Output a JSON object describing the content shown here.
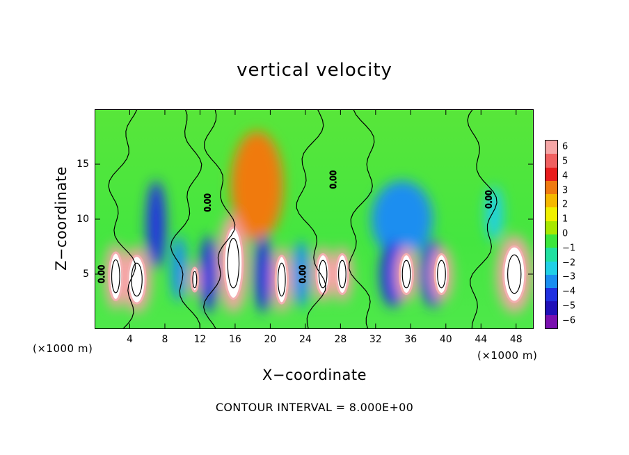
{
  "chart_data": {
    "type": "heatmap",
    "title": "vertical velocity",
    "xlabel": "X−coordinate",
    "ylabel": "Z−coordinate",
    "x_unit_left": "(×1000 m)",
    "x_unit_right": "(×1000 m)",
    "footer": "CONTOUR INTERVAL = 8.000E+00",
    "xlim": [
      0,
      50
    ],
    "ylim": [
      0,
      20
    ],
    "x_ticks": [
      "4",
      "8",
      "12",
      "16",
      "20",
      "24",
      "28",
      "32",
      "36",
      "40",
      "44",
      "48"
    ],
    "y_ticks": [
      "5",
      "10",
      "15"
    ],
    "colorbar": {
      "range": [
        -6,
        6
      ],
      "labels": [
        "6",
        "5",
        "4",
        "3",
        "2",
        "1",
        "0",
        "−1",
        "−2",
        "−3",
        "−4",
        "−5",
        "−6"
      ],
      "colors": [
        "#f5a6a6",
        "#f06060",
        "#e81c1c",
        "#f07a10",
        "#f5b800",
        "#f0f000",
        "#a8e800",
        "#3ce63c",
        "#20e0a0",
        "#20d0e6",
        "#1a8ef0",
        "#2030e0",
        "#2010b8",
        "#7a10b0"
      ]
    },
    "contour_label": "0.00",
    "cells": [
      {
        "x": 2.4,
        "z": 4.8,
        "w": 2.4,
        "z_span": 6,
        "value": 8
      },
      {
        "x": 4.8,
        "z": 4.5,
        "w": 3.2,
        "z_span": 6,
        "value": 9
      },
      {
        "x": 7.0,
        "z": 9.5,
        "w": 2.2,
        "z_span": 8,
        "value": -4
      },
      {
        "x": 9.6,
        "z": 5.5,
        "w": 1.8,
        "z_span": 6,
        "value": -3
      },
      {
        "x": 11.4,
        "z": 4.5,
        "w": 1.2,
        "z_span": 3,
        "value": 7
      },
      {
        "x": 13.0,
        "z": 5.0,
        "w": 2.0,
        "z_span": 7,
        "value": -4
      },
      {
        "x": 15.8,
        "z": 6.0,
        "w": 3.4,
        "z_span": 9,
        "value": 9
      },
      {
        "x": 18.5,
        "z": 13.0,
        "w": 6.0,
        "z_span": 10,
        "value": 3
      },
      {
        "x": 19.2,
        "z": 5.0,
        "w": 2.0,
        "z_span": 7,
        "value": -4
      },
      {
        "x": 21.3,
        "z": 4.5,
        "w": 2.2,
        "z_span": 6,
        "value": 8
      },
      {
        "x": 23.5,
        "z": 5.0,
        "w": 2.0,
        "z_span": 6,
        "value": -3
      },
      {
        "x": 26.0,
        "z": 5.0,
        "w": 2.4,
        "z_span": 5,
        "value": 8
      },
      {
        "x": 28.2,
        "z": 5.0,
        "w": 2.2,
        "z_span": 5,
        "value": 8
      },
      {
        "x": 35.0,
        "z": 10.0,
        "w": 7.0,
        "z_span": 7,
        "value": -3
      },
      {
        "x": 34.0,
        "z": 5.0,
        "w": 3.0,
        "z_span": 6,
        "value": -4
      },
      {
        "x": 35.5,
        "z": 5.0,
        "w": 2.4,
        "z_span": 5,
        "value": 9
      },
      {
        "x": 38.6,
        "z": 5.0,
        "w": 3.0,
        "z_span": 6,
        "value": -4
      },
      {
        "x": 39.5,
        "z": 5.0,
        "w": 2.4,
        "z_span": 5,
        "value": 9
      },
      {
        "x": 45.5,
        "z": 10.5,
        "w": 2.0,
        "z_span": 5,
        "value": -2
      },
      {
        "x": 47.8,
        "z": 5.0,
        "w": 4.0,
        "z_span": 7,
        "value": 9
      }
    ]
  }
}
